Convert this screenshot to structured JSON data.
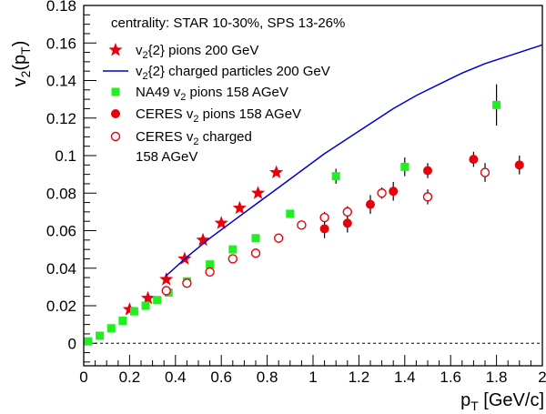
{
  "chart_data": {
    "type": "scatter",
    "title": "",
    "xlabel": {
      "main": "p",
      "sub": "T",
      "rest": " [GeV/c]"
    },
    "ylabel": {
      "v": "v",
      "vsub": "2",
      "open": "(p",
      "psub": "T",
      "close": ")"
    },
    "xlim": [
      0,
      2
    ],
    "ylim": [
      -0.012,
      0.18
    ],
    "xticks": [
      "0",
      "0.2",
      "0.4",
      "0.6",
      "0.8",
      "1",
      "1.2",
      "1.4",
      "1.6",
      "1.8",
      "2"
    ],
    "yticks": [
      "0",
      "0.02",
      "0.04",
      "0.06",
      "0.08",
      "0.1",
      "0.12",
      "0.14",
      "0.16",
      "0.18"
    ],
    "zero_line": true,
    "legend_header": "centrality: STAR 10-30%, SPS 13-26%",
    "legend": [
      {
        "pre": "v",
        "sub": "2",
        "post": "{2} pions 200 GeV",
        "color": "#e8000b",
        "marker": "star"
      },
      {
        "pre": "v",
        "sub": "2",
        "post": "{2} charged particles 200 GeV",
        "color": "#0000cc",
        "marker": "line"
      },
      {
        "pre": "NA49 v",
        "sub": "2",
        "post": " pions 158 AGeV",
        "color": "#22ee22",
        "marker": "square"
      },
      {
        "pre": "CERES v",
        "sub": "2",
        "post": " pions 158 AGeV",
        "color": "#e8000b",
        "marker": "circle"
      },
      {
        "pre": "CERES v",
        "sub": "2",
        "post": " charged",
        "line2": "158 AGeV",
        "color": "#e8000b",
        "marker": "open-circle"
      }
    ],
    "series": [
      {
        "name": "v2{2} pions 200 GeV",
        "marker": "star",
        "color": "#e8000b",
        "x": [
          0.2,
          0.28,
          0.36,
          0.44,
          0.52,
          0.6,
          0.68,
          0.76,
          0.84
        ],
        "y": [
          0.018,
          0.024,
          0.034,
          0.045,
          0.055,
          0.064,
          0.072,
          0.08,
          0.091
        ]
      },
      {
        "name": "v2{2} charged particles 200 GeV",
        "marker": "line",
        "color": "#0000cc",
        "x": [
          0.36,
          0.45,
          0.55,
          0.65,
          0.75,
          0.85,
          0.95,
          1.05,
          1.15,
          1.25,
          1.35,
          1.45,
          1.55,
          1.65,
          1.75,
          1.85,
          1.95,
          2.0
        ],
        "y": [
          0.036,
          0.046,
          0.056,
          0.065,
          0.074,
          0.083,
          0.092,
          0.101,
          0.109,
          0.117,
          0.125,
          0.132,
          0.138,
          0.144,
          0.149,
          0.153,
          0.157,
          0.159
        ]
      },
      {
        "name": "NA49 v2 pions 158 AGeV",
        "marker": "square",
        "color": "#22ee22",
        "x": [
          0.02,
          0.07,
          0.12,
          0.17,
          0.22,
          0.27,
          0.32,
          0.37,
          0.45,
          0.55,
          0.65,
          0.75,
          0.9,
          1.1,
          1.4,
          1.8
        ],
        "y": [
          0.001,
          0.004,
          0.008,
          0.012,
          0.017,
          0.02,
          0.023,
          0.027,
          0.033,
          0.042,
          0.05,
          0.056,
          0.069,
          0.089,
          0.094,
          0.127
        ],
        "err": [
          0,
          0,
          0,
          0,
          0,
          0,
          0,
          0,
          0,
          0,
          0,
          0.002,
          0.002,
          0.004,
          0.005,
          0.011
        ]
      },
      {
        "name": "CERES v2 pions 158 AGeV",
        "marker": "circle",
        "color": "#e8000b",
        "x": [
          1.05,
          1.15,
          1.25,
          1.35,
          1.5,
          1.7,
          1.9
        ],
        "y": [
          0.061,
          0.064,
          0.074,
          0.081,
          0.092,
          0.098,
          0.095
        ],
        "err": [
          0.005,
          0.005,
          0.005,
          0.005,
          0.004,
          0.004,
          0.005
        ]
      },
      {
        "name": "CERES v2 charged 158 AGeV",
        "marker": "open-circle",
        "color": "#e8000b",
        "x": [
          0.36,
          0.45,
          0.55,
          0.65,
          0.75,
          0.85,
          0.95,
          1.05,
          1.15,
          1.3,
          1.5,
          1.75
        ],
        "y": [
          0.028,
          0.032,
          0.038,
          0.045,
          0.048,
          0.056,
          0.063,
          0.067,
          0.07,
          0.08,
          0.078,
          0.091
        ],
        "err": [
          0,
          0,
          0,
          0,
          0.002,
          0.002,
          0.002,
          0.003,
          0.003,
          0.003,
          0.004,
          0.005
        ]
      }
    ]
  }
}
